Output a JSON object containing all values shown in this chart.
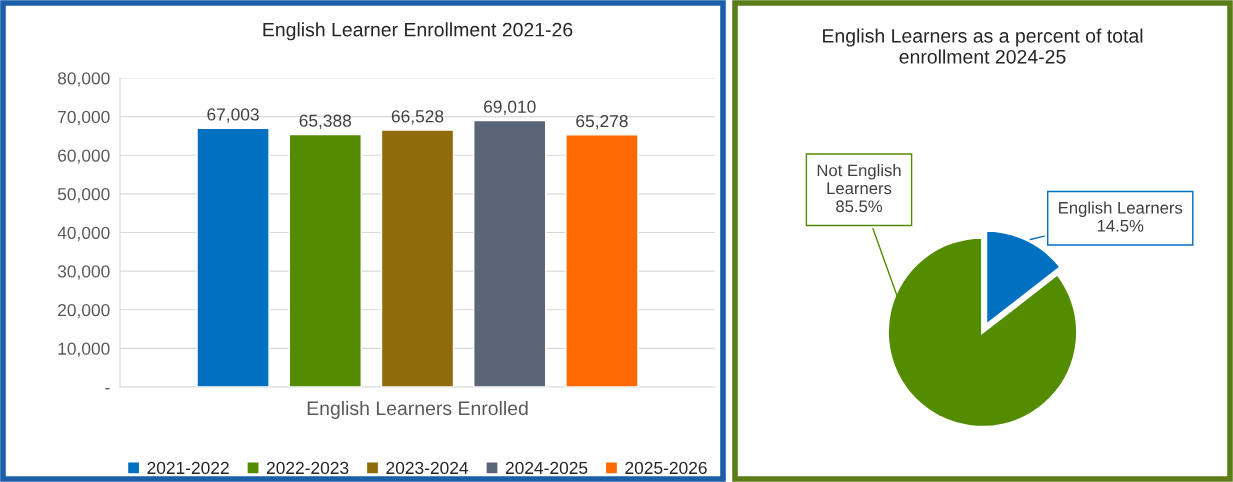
{
  "chart_data": [
    {
      "type": "bar",
      "title": "English Learner Enrollment 2021-26",
      "categories": [
        "English Learners Enrolled"
      ],
      "series": [
        {
          "name": "2021-2022",
          "color": "#0070c0",
          "values": [
            67003
          ],
          "value_labels": [
            "67,003"
          ]
        },
        {
          "name": "2022-2023",
          "color": "#548c00",
          "values": [
            65388
          ],
          "value_labels": [
            "65,388"
          ]
        },
        {
          "name": "2023-2024",
          "color": "#8f6b0c",
          "values": [
            66528
          ],
          "value_labels": [
            "66,528"
          ]
        },
        {
          "name": "2024-2025",
          "color": "#5a6578",
          "values": [
            69010
          ],
          "value_labels": [
            "69,010"
          ]
        },
        {
          "name": "2025-2026",
          "color": "#ff6a00",
          "values": [
            65278
          ],
          "value_labels": [
            "65,278"
          ]
        }
      ],
      "ylim": [
        0,
        80000
      ],
      "yticks": [
        {
          "value": 0,
          "label": "-"
        },
        {
          "value": 10000,
          "label": "10,000"
        },
        {
          "value": 20000,
          "label": "20,000"
        },
        {
          "value": 30000,
          "label": "30,000"
        },
        {
          "value": 40000,
          "label": "40,000"
        },
        {
          "value": 50000,
          "label": "50,000"
        },
        {
          "value": 60000,
          "label": "60,000"
        },
        {
          "value": 70000,
          "label": "70,000"
        },
        {
          "value": 80000,
          "label": "80,000"
        }
      ],
      "grid": "y",
      "legend": "bottom"
    },
    {
      "type": "pie",
      "title": "English Learners as a percent of total\nenrollment 2024-25",
      "categories": [
        "English Learners",
        "Not English\nLearners"
      ],
      "values": [
        14.5,
        85.5
      ],
      "value_labels": [
        "14.5%",
        "85.5%"
      ],
      "colors": [
        "#0070c0",
        "#548c00"
      ]
    }
  ]
}
